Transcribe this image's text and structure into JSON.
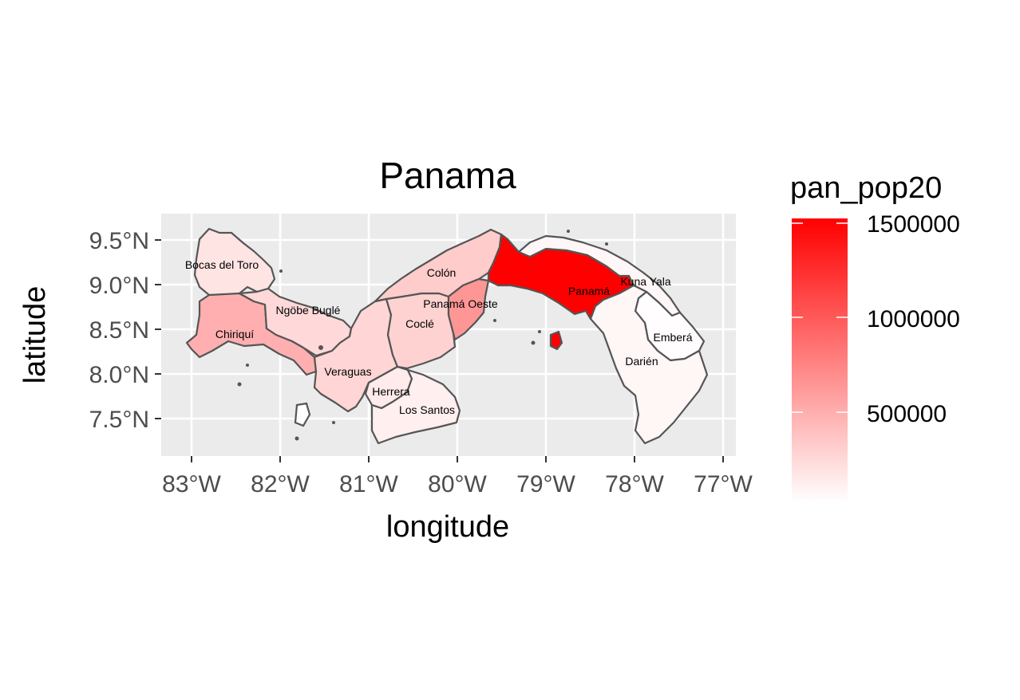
{
  "plot": {
    "title": "Panama",
    "xlabel": "longitude",
    "ylabel": "latitude",
    "x_ticks": [
      "83°W",
      "82°W",
      "81°W",
      "80°W",
      "79°W",
      "78°W",
      "77°W"
    ],
    "y_ticks": [
      "9.5°N",
      "9.0°N",
      "8.5°N",
      "8.0°N",
      "7.5°N"
    ],
    "panel_background": "#ebebeb",
    "grid_color": "#ffffff"
  },
  "legend": {
    "title": "pan_pop20",
    "labels": [
      "1500000",
      "1000000",
      "500000"
    ],
    "low_color": "#ffffff",
    "high_color": "#ff0000"
  },
  "map_data": {
    "variable": "pan_pop20",
    "regions": [
      {
        "name": "Bocas del Toro",
        "value": 160000
      },
      {
        "name": "Chiriquí",
        "value": 470000
      },
      {
        "name": "Ngöbe Buglé",
        "value": 225000
      },
      {
        "name": "Veraguas",
        "value": 250000
      },
      {
        "name": "Herrera",
        "value": 120000
      },
      {
        "name": "Los Santos",
        "value": 95000
      },
      {
        "name": "Coclé",
        "value": 265000
      },
      {
        "name": "Colón",
        "value": 300000
      },
      {
        "name": "Panamá Oeste",
        "value": 620000
      },
      {
        "name": "Panamá",
        "value": 1500000
      },
      {
        "name": "Kuna Yala",
        "value": 45000
      },
      {
        "name": "Emberá",
        "value": 12000
      },
      {
        "name": "Darién",
        "value": 55000
      }
    ]
  }
}
